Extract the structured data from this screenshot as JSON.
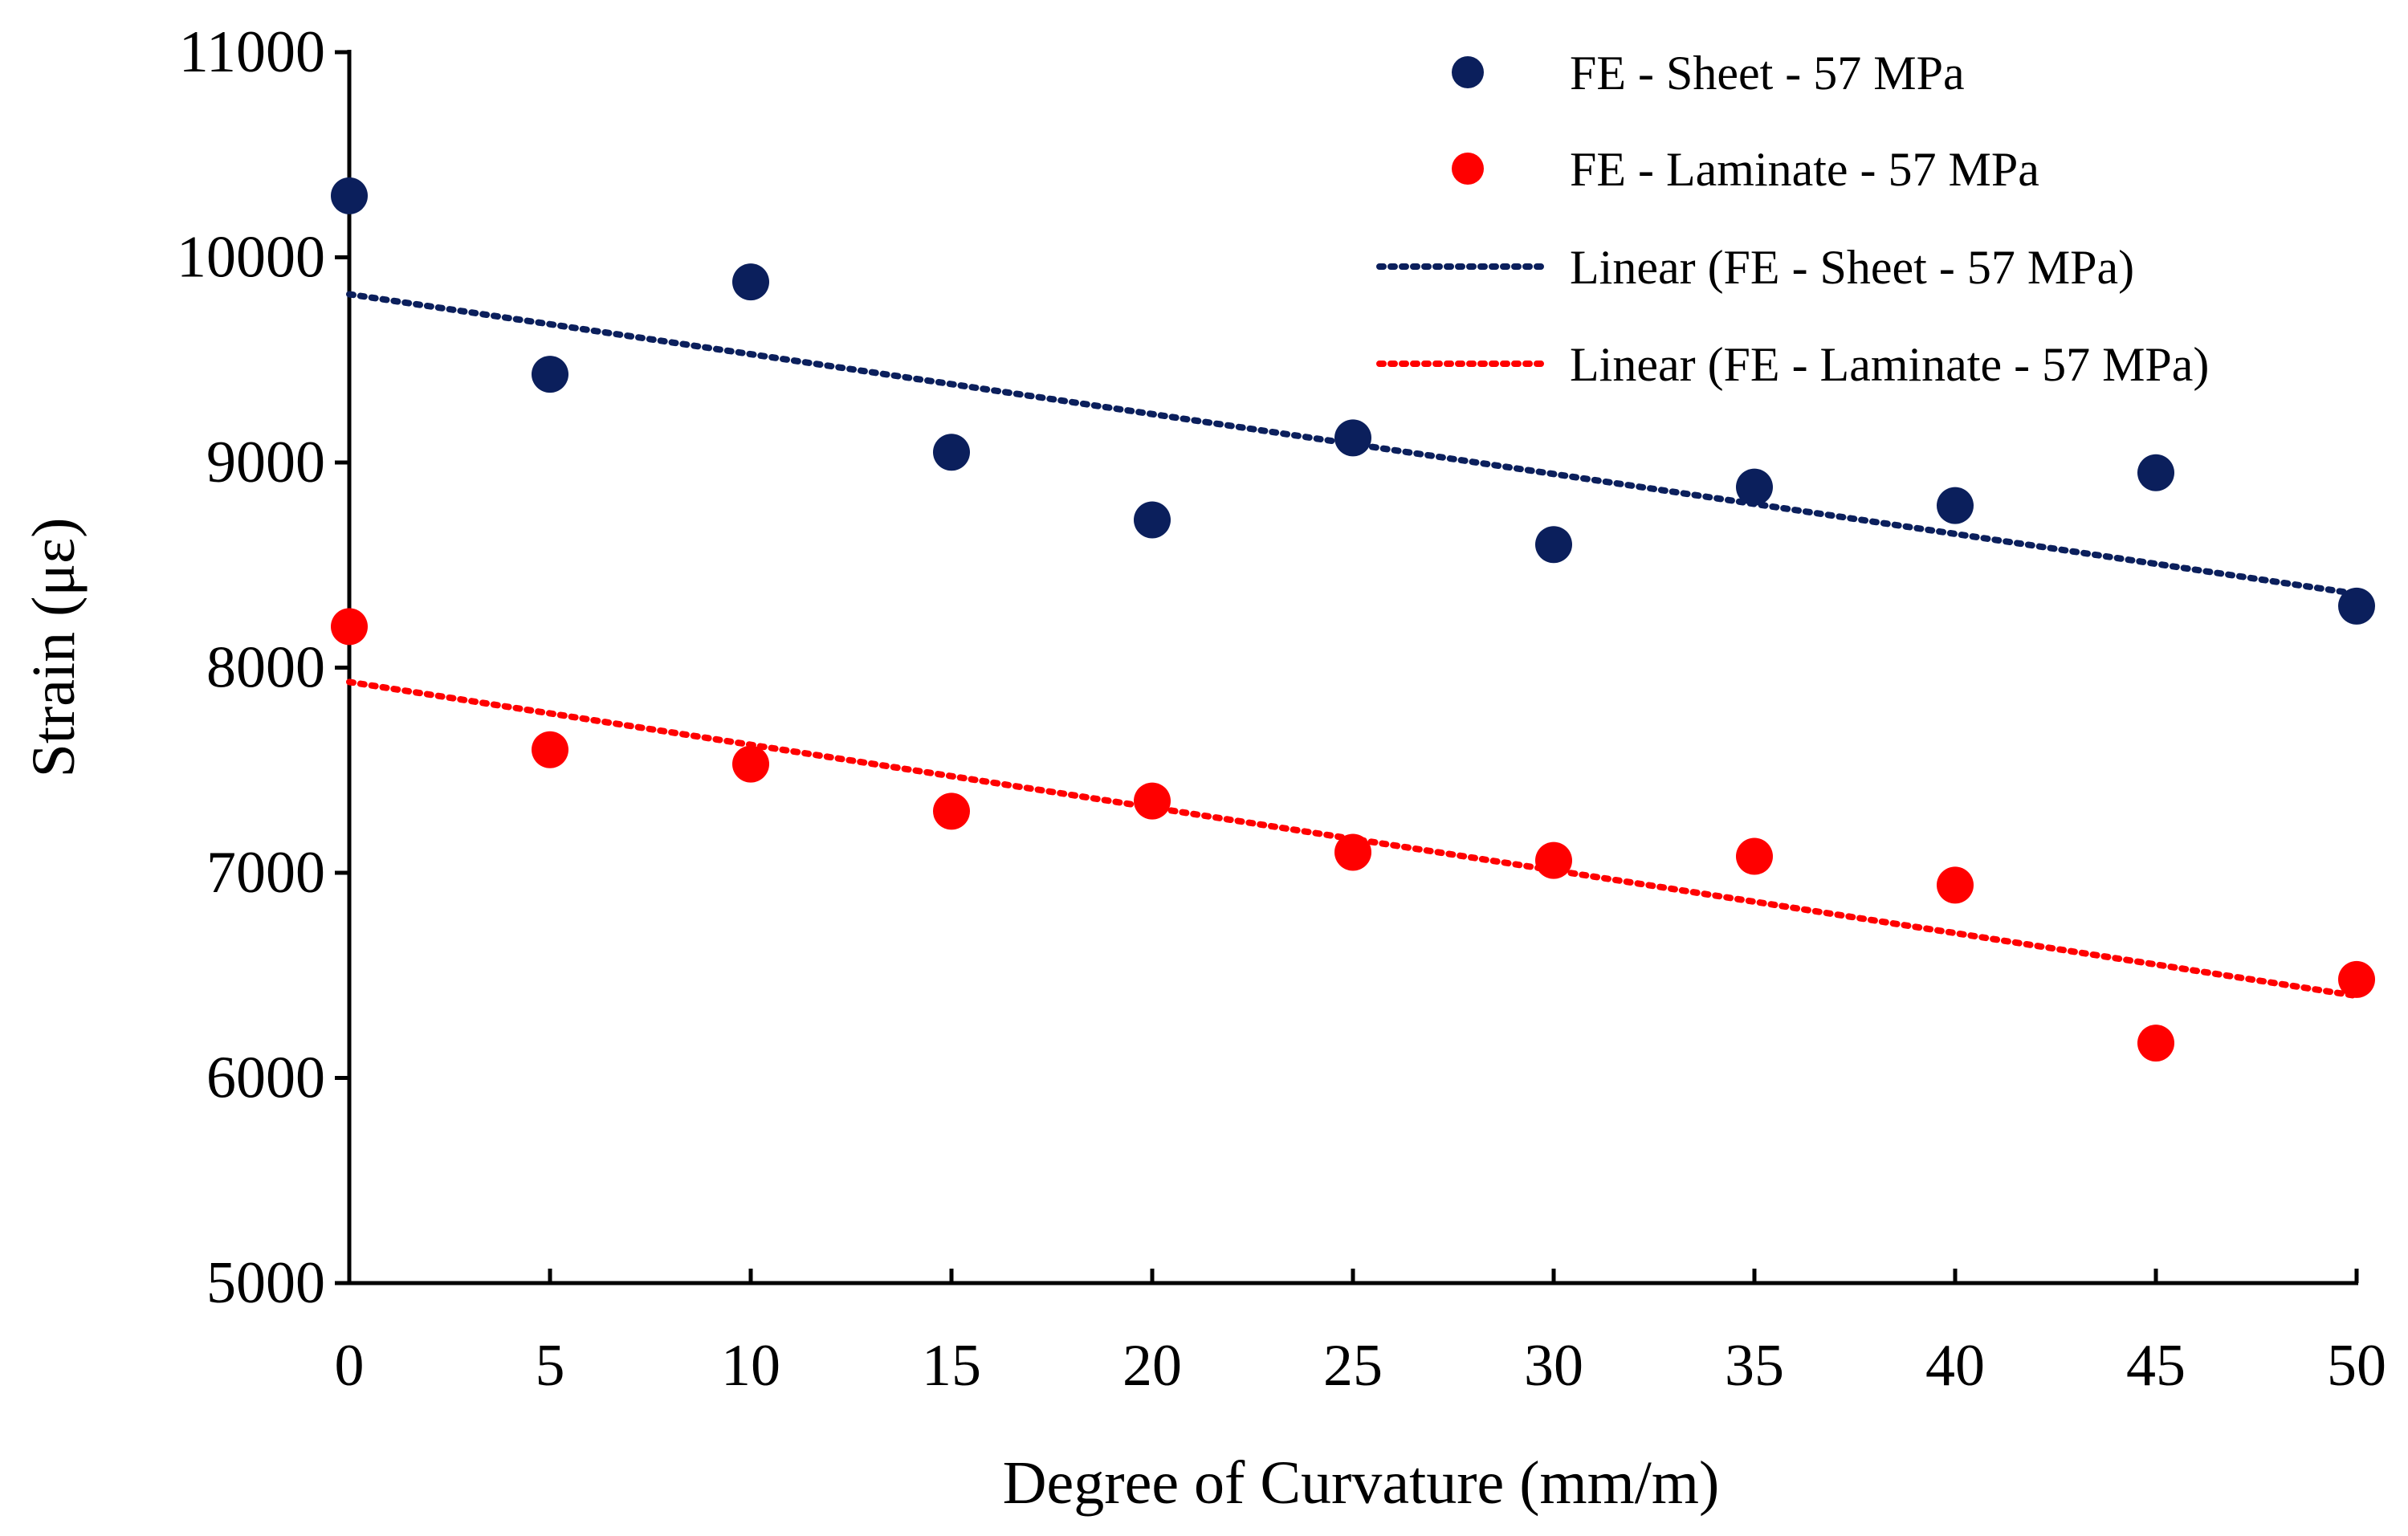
{
  "chart_data": {
    "type": "scatter",
    "title": "",
    "xlabel": "Degree of Curvature (mm/m)",
    "ylabel": "Strain (με)",
    "xlim": [
      0,
      50
    ],
    "ylim": [
      5000,
      11000
    ],
    "xticks": [
      0,
      5,
      10,
      15,
      20,
      25,
      30,
      35,
      40,
      45,
      50
    ],
    "yticks": [
      5000,
      6000,
      7000,
      8000,
      9000,
      10000,
      11000
    ],
    "grid": false,
    "legend_position": "top-right",
    "x": [
      0,
      5,
      10,
      15,
      20,
      25,
      30,
      35,
      40,
      45,
      50
    ],
    "series": [
      {
        "name": "FE - Sheet - 57 MPa",
        "color": "#0b1f5c",
        "values": [
          10300,
          9430,
          9880,
          9050,
          8720,
          9120,
          8600,
          8880,
          8790,
          8950,
          8300
        ]
      },
      {
        "name": "FE - Laminate - 57 MPa",
        "color": "#ff0000",
        "values": [
          8200,
          7600,
          7530,
          7300,
          7350,
          7100,
          7060,
          7080,
          6940,
          6170,
          6480
        ]
      }
    ],
    "trendlines": [
      {
        "name": "Linear (FE - Sheet - 57 MPa)",
        "color": "#0b1f5c",
        "x": [
          0,
          50
        ],
        "y": [
          9820,
          8360
        ]
      },
      {
        "name": "Linear (FE - Laminate - 57 MPa)",
        "color": "#ff0000",
        "x": [
          0,
          50
        ],
        "y": [
          7930,
          6400
        ]
      }
    ]
  }
}
